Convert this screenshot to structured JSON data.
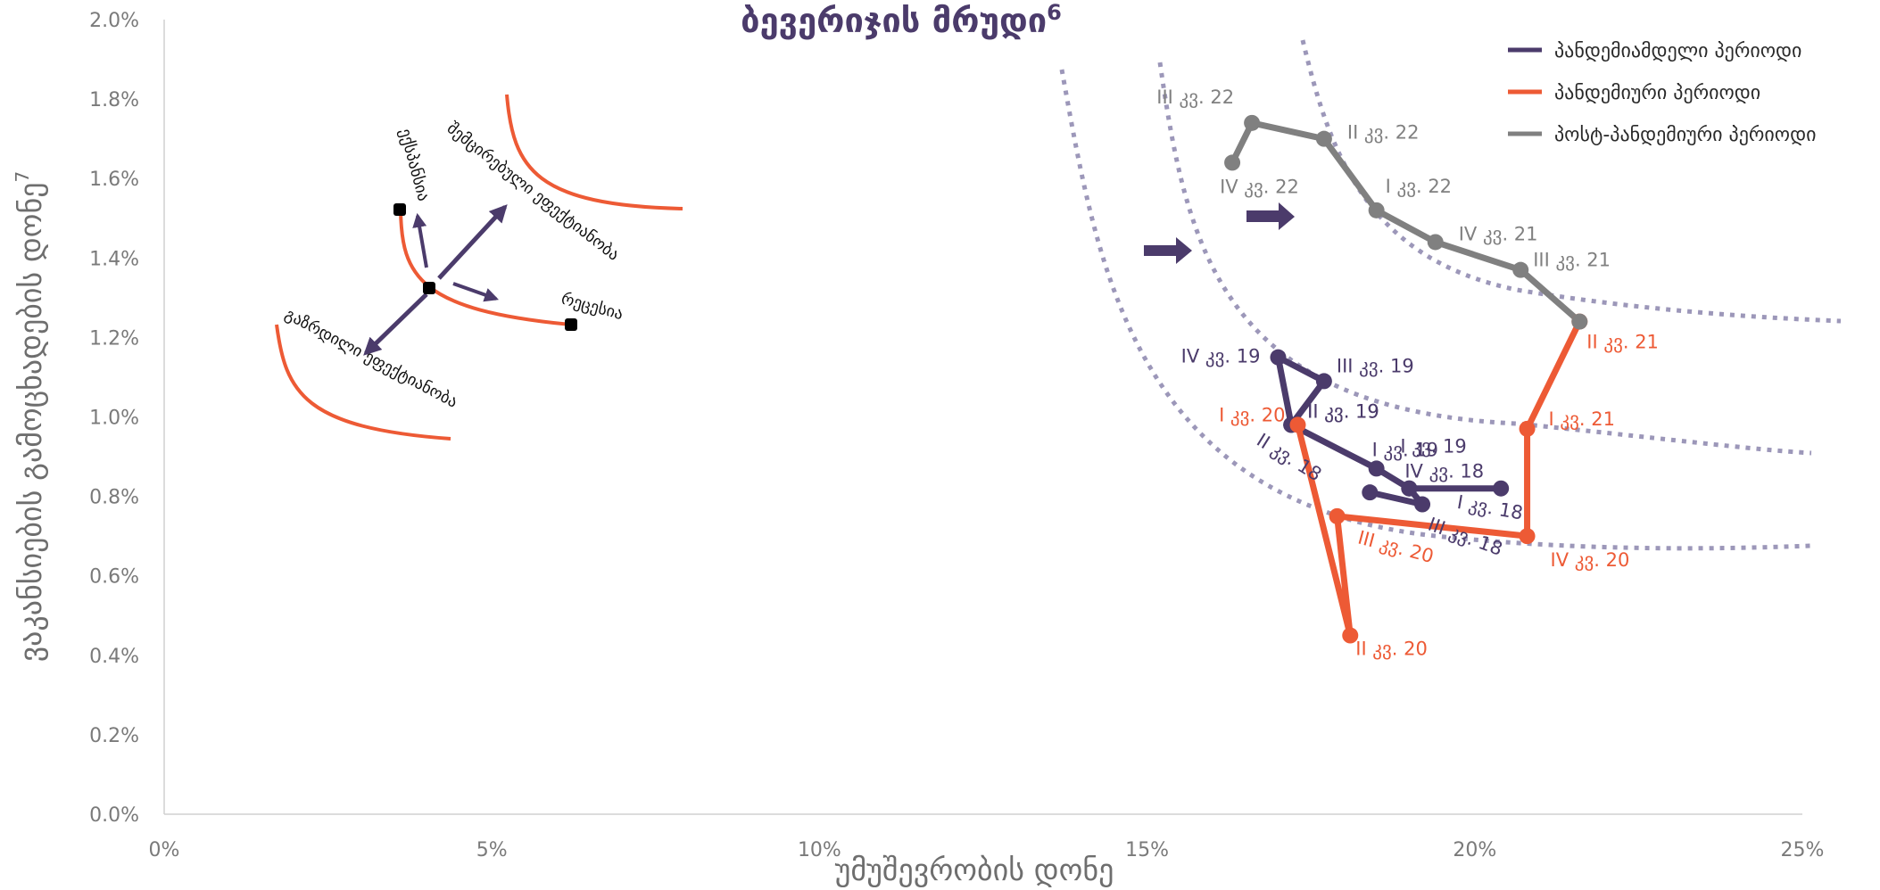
{
  "chart_data": {
    "type": "line",
    "title": "ბევერიჯის მრუდი",
    "title_sup": "6",
    "xlabel": "უმუშევრობის დონე",
    "ylabel": "ვაკანსიების გამოცხადების დონე",
    "ylabel_sup": "7",
    "xlim": [
      0,
      0.25
    ],
    "ylim": [
      0,
      0.02
    ],
    "x_ticks": [
      "0%",
      "5%",
      "10%",
      "15%",
      "20%",
      "25%"
    ],
    "y_ticks": [
      "0.0%",
      "0.2%",
      "0.4%",
      "0.6%",
      "0.8%",
      "1.0%",
      "1.2%",
      "1.4%",
      "1.6%",
      "1.8%",
      "2.0%"
    ],
    "grid": false,
    "legend_position": "top-right",
    "colors": {
      "pre": "#4b3b6b",
      "pandemic": "#ed5a35",
      "post": "#808080",
      "guide": "#9c97b9"
    },
    "series": [
      {
        "name": "პანდემიამდელი პერიოდი",
        "color": "#4b3b6b",
        "points": [
          {
            "label": "II კვ. 18",
            "x": 0.184,
            "y": 0.0081
          },
          {
            "label": "III კვ. 18",
            "x": 0.192,
            "y": 0.0078
          },
          {
            "label": "IV კვ. 18",
            "x": 0.19,
            "y": 0.0082
          },
          {
            "label": "I კვ. 18",
            "x": 0.204,
            "y": 0.0082
          },
          {
            "label": "I კვ. 19",
            "x": 0.19,
            "y": 0.0082
          },
          {
            "label": "I კვ. 19",
            "x": 0.185,
            "y": 0.0087
          },
          {
            "label": "II კვ. 19",
            "x": 0.172,
            "y": 0.0098
          },
          {
            "label": "III კვ. 19",
            "x": 0.177,
            "y": 0.0109
          },
          {
            "label": "IV კვ. 19",
            "x": 0.17,
            "y": 0.0115
          },
          {
            "label": "II კვ. 19",
            "x": 0.172,
            "y": 0.0098
          }
        ]
      },
      {
        "name": "პანდემიური პერიოდი",
        "color": "#ed5a35",
        "points": [
          {
            "label": "I კვ. 20",
            "x": 0.173,
            "y": 0.0098
          },
          {
            "label": "II კვ. 20",
            "x": 0.181,
            "y": 0.0045
          },
          {
            "label": "III კვ. 20",
            "x": 0.179,
            "y": 0.0075
          },
          {
            "label": "IV კვ. 20",
            "x": 0.208,
            "y": 0.007
          },
          {
            "label": "I კვ. 21",
            "x": 0.208,
            "y": 0.0097
          },
          {
            "label": "II კვ. 21",
            "x": 0.216,
            "y": 0.0124
          }
        ]
      },
      {
        "name": "პოსტ-პანდემიური პერიოდი",
        "color": "#808080",
        "points": [
          {
            "label": "II კვ. 21",
            "x": 0.216,
            "y": 0.0124
          },
          {
            "label": "III კვ. 21",
            "x": 0.207,
            "y": 0.0137
          },
          {
            "label": "IV კვ. 21",
            "x": 0.194,
            "y": 0.0144
          },
          {
            "label": "I კვ. 22",
            "x": 0.185,
            "y": 0.0152
          },
          {
            "label": "II კვ. 22",
            "x": 0.177,
            "y": 0.017
          },
          {
            "label": "III კვ. 22",
            "x": 0.166,
            "y": 0.0174
          },
          {
            "label": "IV კვ. 22",
            "x": 0.163,
            "y": 0.0164
          }
        ]
      }
    ],
    "inset_labels": {
      "expansion": "ექსპანსია",
      "recession": "რეცესია",
      "lower_eff": "შემცირებული ეფექტიანობა",
      "higher_eff": "გაზრდილი ეფექტიანობა"
    }
  }
}
